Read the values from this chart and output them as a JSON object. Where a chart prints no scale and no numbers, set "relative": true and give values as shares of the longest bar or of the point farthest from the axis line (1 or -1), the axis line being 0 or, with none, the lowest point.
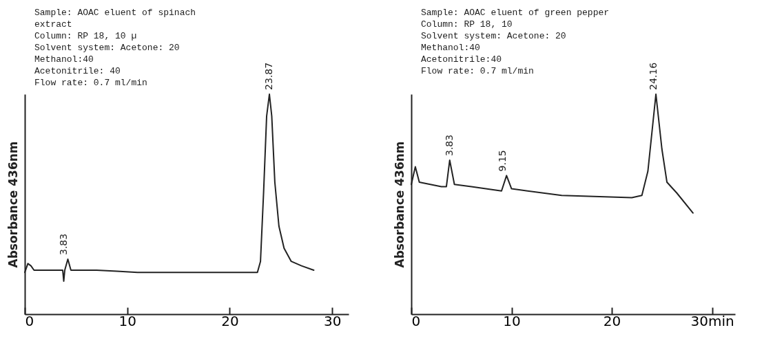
{
  "chart_data": [
    {
      "type": "line",
      "relative": true,
      "ylabel": "Absorbance 436nm",
      "xlim": [
        0,
        31.6
      ],
      "xticks": [
        0,
        10,
        20,
        30
      ],
      "annotations": [
        "Sample:  AOAC eluent of spinach",
        "extract",
        "Column:  RP 18, 10 µ",
        "Solvent system: Acetone: 20",
        "Methanol:40",
        "Acetonitrile: 40",
        "Flow rate: 0.7 ml/min",
        {
          "text": "3.83",
          "x": 3.83,
          "y": 0.25
        },
        {
          "text": "23.87",
          "x": 23.87,
          "y": 1
        }
      ],
      "series": [
        {
          "color": "#222222",
          "x": [
            0,
            0.3,
            0.6,
            0.9,
            1.5,
            3.7,
            3.8,
            3.9,
            4.2,
            4.5,
            5,
            7,
            9,
            11,
            15,
            19,
            22.7,
            23.0,
            23.3,
            23.6,
            23.87,
            24.1,
            24.4,
            24.8,
            25.3,
            26,
            27,
            28.2
          ],
          "values": [
            0.19,
            0.23,
            0.22,
            0.2,
            0.2,
            0.2,
            0.15,
            0.2,
            0.25,
            0.2,
            0.2,
            0.2,
            0.195,
            0.19,
            0.19,
            0.19,
            0.19,
            0.24,
            0.55,
            0.9,
            1.0,
            0.9,
            0.6,
            0.4,
            0.3,
            0.24,
            0.22,
            0.2
          ]
        }
      ]
    },
    {
      "type": "line",
      "relative": true,
      "ylabel": "Absorbance 436nm",
      "xlim": [
        0,
        32.3
      ],
      "xticks": [
        0,
        10,
        20,
        {
          "value": 30,
          "label": "30min"
        }
      ],
      "annotations": [
        "Sample:  AOAC eluent of green pepper",
        "Column:  RP 18, 10",
        "Solvent system: Acetone: 20",
        "Methanol:40",
        "Acetonitrile:40",
        "Flow rate: 0.7 ml/min",
        {
          "text": "3.83",
          "x": 3.83,
          "y": 0.7
        },
        {
          "text": "9.15",
          "x": 9.15,
          "y": 0.63
        },
        {
          "text": "24.16",
          "x": 24.16,
          "y": 1
        }
      ],
      "series": [
        {
          "color": "#222222",
          "x": [
            0,
            0.4,
            0.8,
            3,
            3.5,
            3.83,
            4.3,
            6,
            9,
            9.5,
            10,
            15,
            22,
            23,
            23.6,
            24.4,
            25.0,
            25.5,
            26.5,
            28.1
          ],
          "values": [
            0.59,
            0.67,
            0.6,
            0.58,
            0.58,
            0.7,
            0.59,
            0.58,
            0.56,
            0.63,
            0.57,
            0.54,
            0.53,
            0.54,
            0.65,
            1.0,
            0.75,
            0.6,
            0.55,
            0.46
          ]
        }
      ]
    }
  ]
}
